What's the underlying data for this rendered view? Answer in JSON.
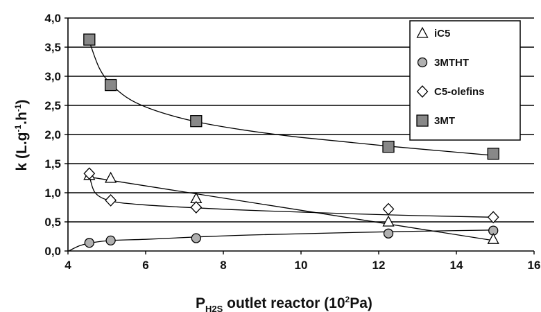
{
  "chart_data": {
    "type": "scatter",
    "xlabel_main": "P",
    "xlabel_sub": "H2S",
    "xlabel_rest": " outlet reactor (10",
    "xlabel_sup": "2",
    "xlabel_end": "Pa)",
    "ylabel_a": "k (L.g",
    "ylabel_sup1": "-1",
    "ylabel_b": ".h",
    "ylabel_sup2": "-1",
    "ylabel_c": ")",
    "xlim": [
      4,
      16
    ],
    "ylim": [
      0,
      4
    ],
    "x_ticks": [
      4,
      6,
      8,
      10,
      12,
      14,
      16
    ],
    "x_tick_labels": [
      "4",
      "6",
      "8",
      "10",
      "12",
      "14",
      "16"
    ],
    "y_ticks": [
      0,
      0.5,
      1,
      1.5,
      2,
      2.5,
      3,
      3.5,
      4
    ],
    "y_tick_labels": [
      "0,0",
      "0,5",
      "1,0",
      "1,5",
      "2,0",
      "2,5",
      "3,0",
      "3,5",
      "4,0"
    ],
    "grid": "horizontal",
    "legend_position": "top-right",
    "series": [
      {
        "name": "iC5",
        "marker": "triangle",
        "fill": "#ffffff",
        "x": [
          4.55,
          5.1,
          7.3,
          12.25,
          14.95
        ],
        "y": [
          1.3,
          1.25,
          0.9,
          0.5,
          0.2
        ],
        "fit": {
          "type": "linear",
          "x0": 4.55,
          "y0": 1.27,
          "x1": 14.95,
          "y1": 0.18
        }
      },
      {
        "name": "3MTHT",
        "marker": "circle",
        "fill": "#b0b0b0",
        "x": [
          4.55,
          5.1,
          7.3,
          12.25,
          14.95
        ],
        "y": [
          0.14,
          0.18,
          0.22,
          0.3,
          0.35
        ],
        "fit": {
          "type": "points",
          "x": [
            4.02,
            4.3,
            4.6,
            5.1,
            6.0,
            7.3,
            9.0,
            12.25,
            14.95
          ],
          "y": [
            0.0,
            0.09,
            0.14,
            0.18,
            0.2,
            0.24,
            0.28,
            0.33,
            0.36
          ]
        }
      },
      {
        "name": "C5-olefins",
        "marker": "diamond",
        "fill": "#ffffff",
        "x": [
          4.55,
          5.1,
          7.3,
          12.25,
          14.95
        ],
        "y": [
          1.33,
          0.87,
          0.75,
          0.72,
          0.58
        ],
        "fit": {
          "type": "points",
          "x": [
            4.55,
            4.7,
            5.1,
            5.8,
            7.3,
            9.0,
            12.25,
            14.95
          ],
          "y": [
            1.3,
            1.0,
            0.86,
            0.8,
            0.74,
            0.69,
            0.62,
            0.58
          ]
        }
      },
      {
        "name": "3MT",
        "marker": "square",
        "fill": "#888888",
        "x": [
          4.55,
          5.1,
          7.3,
          12.25,
          14.95
        ],
        "y": [
          3.63,
          2.85,
          2.23,
          1.79,
          1.67
        ],
        "fit": {
          "type": "points",
          "x": [
            4.55,
            4.8,
            5.1,
            5.6,
            6.3,
            7.3,
            8.5,
            10.0,
            12.25,
            14.95
          ],
          "y": [
            3.6,
            3.15,
            2.87,
            2.6,
            2.4,
            2.22,
            2.08,
            1.95,
            1.8,
            1.64
          ]
        }
      }
    ]
  }
}
